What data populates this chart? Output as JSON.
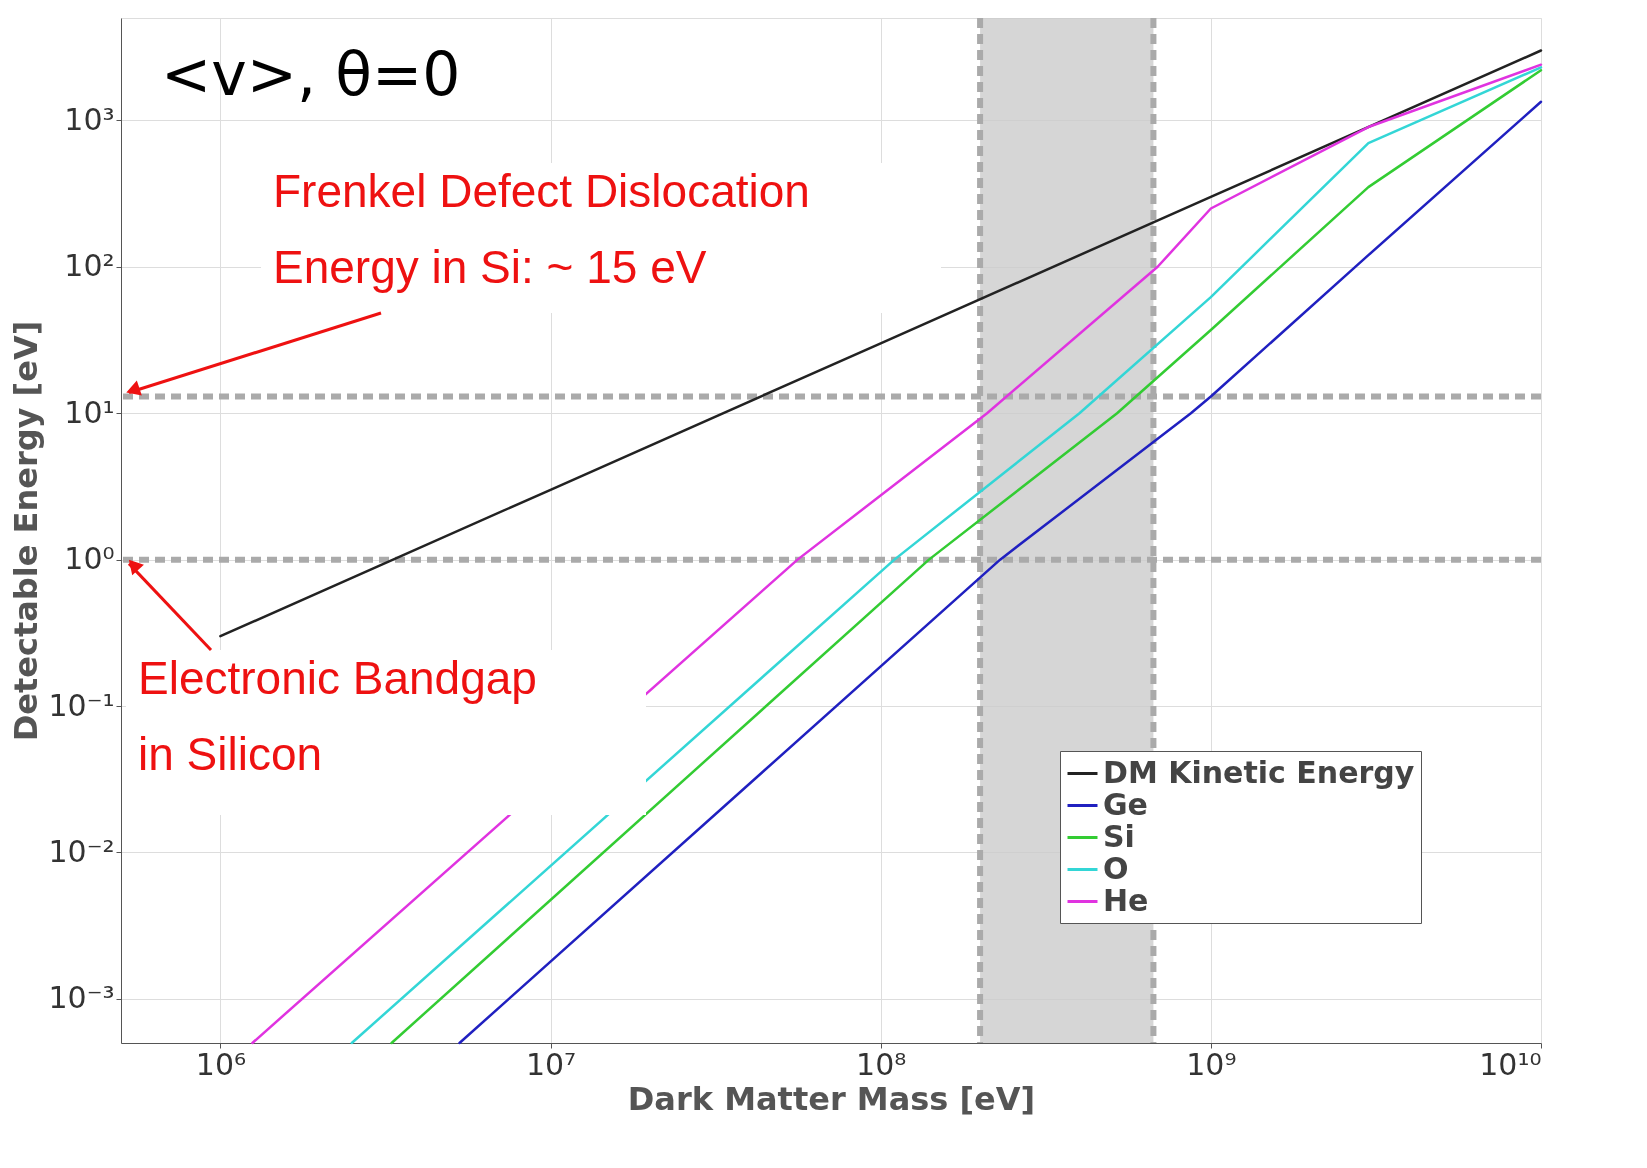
{
  "chart_data": {
    "type": "line",
    "xlabel": "Dark Matter Mass [eV]",
    "ylabel": "Detectable Energy [eV]",
    "log": "xy",
    "grid": true,
    "legend": "bottom right",
    "line_style": "solid",
    "marker": "none",
    "xlim": [
      500000,
      10000000000
    ],
    "ylim": [
      0.0005,
      5000
    ],
    "xticks": [
      {
        "value": 1000000,
        "label": "10⁶"
      },
      {
        "value": 10000000,
        "label": "10⁷"
      },
      {
        "value": 100000000,
        "label": "10⁸"
      },
      {
        "value": 1000000000,
        "label": "10⁹"
      },
      {
        "value": 10000000000,
        "label": "10¹⁰"
      }
    ],
    "yticks": [
      {
        "value": 0.001,
        "label": "10⁻³"
      },
      {
        "value": 0.01,
        "label": "10⁻²"
      },
      {
        "value": 0.1,
        "label": "10⁻¹"
      },
      {
        "value": 1,
        "label": "10⁰"
      },
      {
        "value": 10,
        "label": "10¹"
      },
      {
        "value": 100,
        "label": "10²"
      },
      {
        "value": 1000,
        "label": "10³"
      }
    ],
    "series": [
      {
        "name": "DM Kinetic Energy",
        "color": "#222222",
        "x": [
          1000000,
          10000000,
          100000000,
          1000000000,
          10000000000
        ],
        "values": [
          0.3,
          3,
          30,
          300,
          3000
        ]
      },
      {
        "name": "Ge",
        "color": "#2020c0",
        "x": [
          5300000,
          230000000,
          870000000,
          1000000000,
          3000000000,
          10000000000
        ],
        "values": [
          0.0005,
          1,
          10,
          13,
          120,
          1340
        ]
      },
      {
        "name": "Si",
        "color": "#33cc33",
        "x": [
          3300000,
          140000000,
          520000000,
          1000000000,
          3000000000,
          10000000000
        ],
        "values": [
          0.0005,
          1,
          10,
          37,
          350,
          2200
        ]
      },
      {
        "name": "O",
        "color": "#33d6d6",
        "x": [
          2500000,
          110000000,
          400000000,
          1000000000,
          3000000000,
          10000000000
        ],
        "values": [
          0.0005,
          1,
          10,
          62,
          700,
          2300
        ]
      },
      {
        "name": "He",
        "color": "#e033e0",
        "x": [
          1250000,
          56000000,
          210000000,
          690000000,
          1000000000,
          3000000000,
          10000000000
        ],
        "values": [
          0.0005,
          1,
          10,
          100,
          250,
          900,
          2400
        ]
      }
    ],
    "ref_lines": [
      {
        "axis": "y",
        "value": 13,
        "label": "Frenkel Defect Dislocation\nEnergy in Si:  ~ 15 eV",
        "color": "#aaaaaa",
        "line_style": "dashed"
      },
      {
        "axis": "y",
        "value": 1,
        "label": "Electronic Bandgap\nin Silicon",
        "color": "#aaaaaa",
        "line_style": "dashed"
      },
      {
        "axis": "x",
        "value": 200000000,
        "color": "#aaaaaa",
        "line_style": "dashed"
      },
      {
        "axis": "x",
        "value": 670000000,
        "color": "#aaaaaa",
        "line_style": "dashed"
      }
    ],
    "bands": [
      {
        "axis": "x",
        "from": 200000000,
        "to": 670000000,
        "color": "#cccccc"
      }
    ],
    "annotations": [
      "<v>, θ=0"
    ]
  }
}
